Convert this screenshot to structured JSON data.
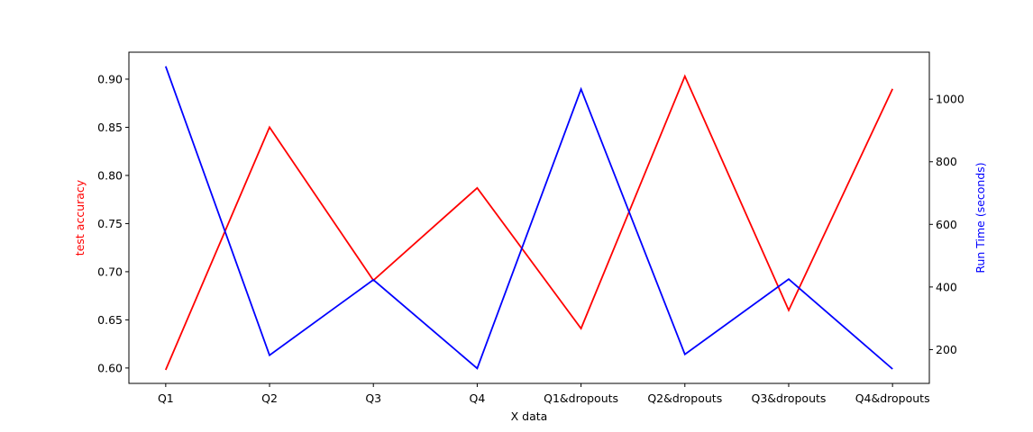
{
  "chart_data": {
    "type": "line",
    "categories": [
      "Q1",
      "Q2",
      "Q3",
      "Q4",
      "Q1&dropouts",
      "Q2&dropouts",
      "Q3&dropouts",
      "Q4&dropouts"
    ],
    "xlabel": "X data",
    "left_axis": {
      "label": "test accuracy",
      "color": "#ff0000",
      "ylim": [
        0.584,
        0.928
      ],
      "ticks": [
        "0.60",
        "0.65",
        "0.70",
        "0.75",
        "0.80",
        "0.85",
        "0.90"
      ],
      "tick_values": [
        0.6,
        0.65,
        0.7,
        0.75,
        0.8,
        0.85,
        0.9
      ]
    },
    "right_axis": {
      "label": "Run Time (seconds)",
      "color": "#0000ff",
      "ylim": [
        92,
        1150
      ],
      "ticks": [
        "200",
        "400",
        "600",
        "800",
        "1000"
      ],
      "tick_values": [
        200,
        400,
        600,
        800,
        1000
      ]
    },
    "series": [
      {
        "axis": "left",
        "color": "#ff0000",
        "values": [
          0.598,
          0.85,
          0.691,
          0.787,
          0.641,
          0.903,
          0.66,
          0.89
        ]
      },
      {
        "axis": "right",
        "color": "#0000ff",
        "values": [
          1105,
          182,
          423,
          140,
          1032,
          185,
          425,
          138
        ]
      }
    ],
    "grid": false
  }
}
